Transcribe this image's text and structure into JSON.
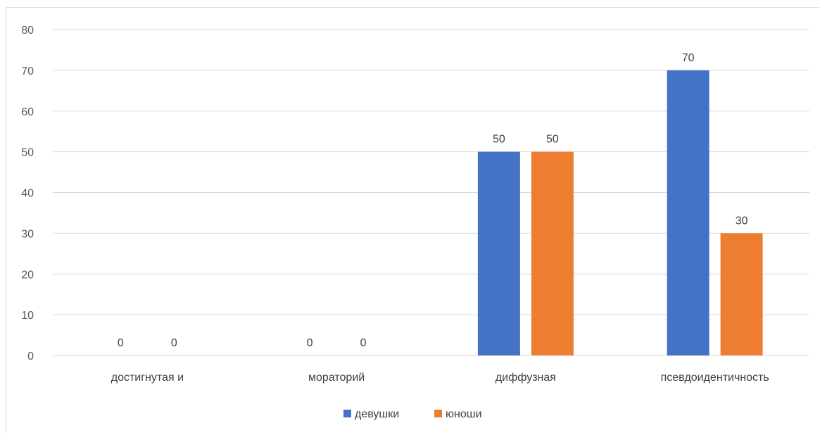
{
  "chart_data": {
    "type": "bar",
    "categories": [
      "достигнутая и",
      "мораторий",
      "диффузная",
      "псевдоидентичность"
    ],
    "series": [
      {
        "name": "девушки",
        "values": [
          0,
          0,
          50,
          70
        ],
        "color": "#4472C4"
      },
      {
        "name": "юноши",
        "values": [
          0,
          0,
          50,
          30
        ],
        "color": "#ED7D31"
      }
    ],
    "ylim": [
      0,
      80
    ],
    "yticks": [
      0,
      10,
      20,
      30,
      40,
      50,
      60,
      70,
      80
    ],
    "grid": true,
    "legend": "bottom",
    "data_labels": true,
    "grid_color": "#d9d9d9"
  }
}
